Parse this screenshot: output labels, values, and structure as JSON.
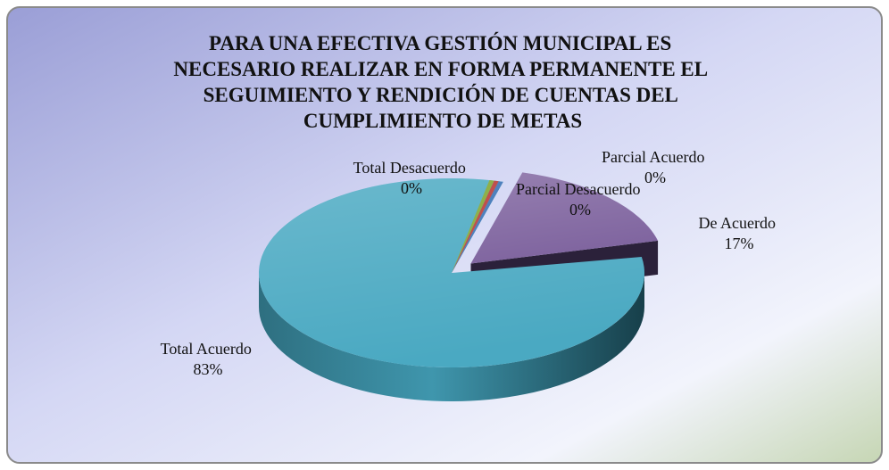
{
  "chart_data": {
    "type": "pie",
    "title_lines": [
      "PARA UNA EFECTIVA GESTIÓN MUNICIPAL ES",
      "NECESARIO REALIZAR EN FORMA PERMANENTE EL",
      "SEGUIMIENTO Y RENDICIÓN DE CUENTAS DEL",
      "CUMPLIMIENTO DE METAS"
    ],
    "three_d": true,
    "exploded_slice": "De Acuerdo",
    "slices": [
      {
        "label": "De Acuerdo",
        "value": 17,
        "value_label": "17%",
        "color": "#7f649f"
      },
      {
        "label": "Total Acuerdo",
        "value": 83,
        "value_label": "83%",
        "color": "#4aa9c2"
      },
      {
        "label": "Total Desacuerdo",
        "value": 0,
        "value_label": "0%",
        "color": "#8fb04a"
      },
      {
        "label": "Parcial Desacuerdo",
        "value": 0,
        "value_label": "0%",
        "color": "#c0504d"
      },
      {
        "label": "Parcial Acuerdo",
        "value": 0,
        "value_label": "0%",
        "color": "#4f81bd"
      }
    ]
  }
}
